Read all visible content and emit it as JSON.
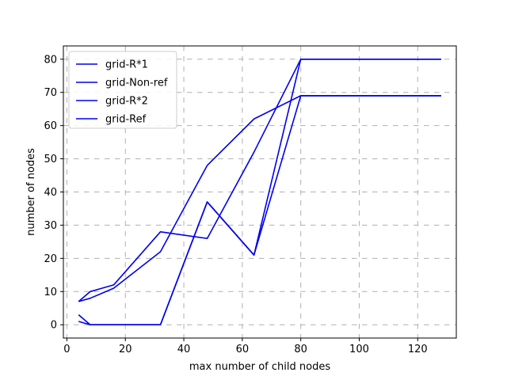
{
  "chart_data": {
    "type": "line",
    "title": "",
    "xlabel": "max number of child nodes",
    "ylabel": "number of nodes",
    "xlim": [
      -1.2,
      133.2
    ],
    "ylim": [
      -4.0,
      84.0
    ],
    "xticks": [
      0,
      20,
      40,
      60,
      80,
      100,
      120
    ],
    "yticks": [
      0,
      10,
      20,
      30,
      40,
      50,
      60,
      70,
      80
    ],
    "grid": true,
    "grid_style": "dashed",
    "legend_position": "top-left",
    "line_color": "#0000ee",
    "series": [
      {
        "name": "grid-R*1",
        "x": [
          4,
          8,
          16,
          32,
          48,
          64,
          80,
          128
        ],
        "y": [
          7,
          10,
          12,
          28,
          26,
          52,
          80,
          80
        ]
      },
      {
        "name": "grid-Non-ref",
        "x": [
          4,
          8,
          16,
          32,
          48,
          64,
          80,
          128
        ],
        "y": [
          7,
          8,
          11,
          22,
          48,
          62,
          69,
          69
        ]
      },
      {
        "name": "grid-R*2",
        "x": [
          4,
          8,
          16,
          32,
          48,
          64,
          80,
          128
        ],
        "y": [
          3,
          0,
          0,
          0,
          37,
          21,
          80,
          80
        ]
      },
      {
        "name": "grid-Ref",
        "x": [
          4,
          8,
          16,
          32,
          48,
          64,
          80,
          128
        ],
        "y": [
          1,
          0,
          0,
          0,
          37,
          21,
          69,
          69
        ]
      }
    ]
  }
}
